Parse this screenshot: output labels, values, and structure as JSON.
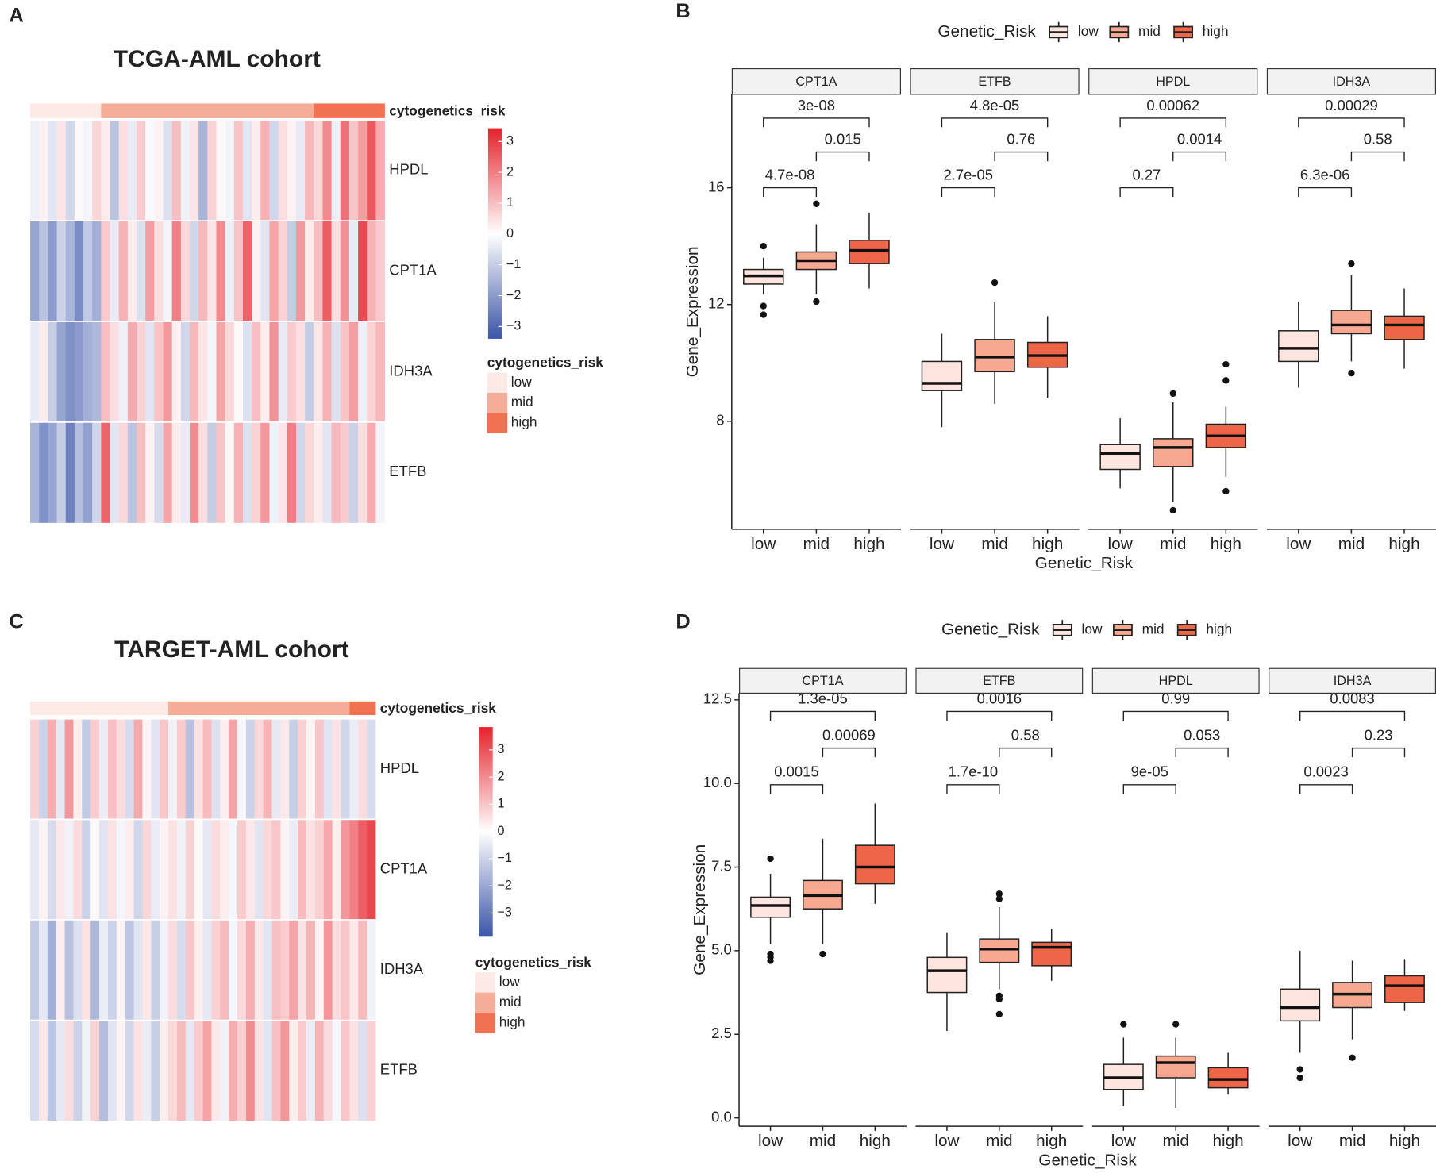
{
  "chart_data": [
    {
      "type": "heatmap",
      "panel": "A",
      "title": "TCGA-AML cohort",
      "rows": [
        "HPDL",
        "CPT1A",
        "IDH3A",
        "ETFB"
      ],
      "values": [
        [
          -0.3,
          0.2,
          -0.5,
          0.4,
          -0.8,
          0.1,
          -0.2,
          0.6,
          0.3,
          -1.2,
          0.5,
          -0.4,
          0.8,
          -0.1,
          0.2,
          -0.6,
          1.0,
          -0.3,
          0.4,
          -1.5,
          0.7,
          0.1,
          -0.2,
          0.9,
          -0.5,
          0.3,
          1.2,
          -0.8,
          0.5,
          0.2,
          -0.4,
          1.1,
          0.6,
          1.8,
          -0.3,
          2.2,
          0.9,
          1.5,
          2.6,
          1.3
        ],
        [
          -1.8,
          -1.2,
          -2.0,
          -0.9,
          -1.5,
          -2.3,
          -1.1,
          -1.6,
          0.8,
          -0.4,
          1.2,
          0.3,
          -0.6,
          1.5,
          0.5,
          -0.2,
          2.0,
          0.6,
          -0.8,
          1.1,
          0.4,
          1.8,
          -0.3,
          0.9,
          2.4,
          0.2,
          -0.5,
          1.4,
          0.7,
          -1.0,
          1.6,
          0.3,
          1.0,
          2.5,
          0.5,
          1.7,
          -0.4,
          2.8,
          1.2,
          0.8
        ],
        [
          -0.4,
          0.3,
          -1.0,
          -1.8,
          -2.2,
          -2.0,
          -1.6,
          -1.4,
          1.0,
          0.5,
          -0.3,
          1.3,
          0.7,
          -0.5,
          0.9,
          1.6,
          0.2,
          -0.8,
          1.1,
          0.4,
          -0.2,
          1.4,
          0.6,
          0.1,
          -0.6,
          1.0,
          0.3,
          1.7,
          -0.4,
          0.8,
          0.5,
          -1.0,
          0.4,
          1.2,
          -0.6,
          0.9,
          1.5,
          -0.3,
          0.7,
          1.1
        ],
        [
          -1.5,
          -2.2,
          -1.8,
          -1.0,
          -2.5,
          -1.3,
          -1.9,
          -0.8,
          2.4,
          -0.5,
          0.6,
          -1.2,
          1.0,
          0.2,
          -0.7,
          1.4,
          0.3,
          -0.4,
          1.8,
          0.5,
          -1.0,
          0.9,
          0.1,
          1.2,
          -0.6,
          0.7,
          1.6,
          -0.3,
          0.4,
          2.0,
          -0.8,
          0.6,
          0.3,
          -0.5,
          1.1,
          0.8,
          -0.9,
          0.5,
          1.3,
          -0.2
        ]
      ],
      "annotation": {
        "name": "cytogenetics_risk",
        "groups": [
          {
            "name": "low",
            "color": "#fde9e5",
            "count": 8
          },
          {
            "name": "mid",
            "color": "#f6ad98",
            "count": 24
          },
          {
            "name": "high",
            "color": "#f07250",
            "count": 8
          }
        ]
      },
      "colorbar": {
        "lim": [
          -3.4,
          3.43
        ],
        "colors": [
          "#3b55a8",
          "#ffffff",
          "#e5222b"
        ],
        "ticks": [
          3,
          2,
          1,
          0,
          {
            "value": -1,
            "label": "−1"
          },
          {
            "value": -2,
            "label": "−2"
          },
          {
            "value": -3,
            "label": "−3"
          }
        ]
      }
    },
    {
      "type": "boxplot",
      "panel": "B",
      "legend_title": "Genetic_Risk",
      "legend_position": "top",
      "categories": [
        "low",
        "mid",
        "high"
      ],
      "colors": [
        "#fee5df",
        "#f6a990",
        "#ef6548"
      ],
      "x_label": "Genetic_Risk",
      "y_label": "Gene_Expression",
      "ylim": [
        4.3,
        19.2
      ],
      "yticks": [
        8,
        12,
        16
      ],
      "facets": [
        {
          "name": "CPT1A",
          "boxes": [
            {
              "min": 12.35,
              "q1": 12.7,
              "median": 12.98,
              "q3": 13.2,
              "max": 13.6,
              "outliers": [
                14.0,
                11.95,
                11.65
              ]
            },
            {
              "min": 12.35,
              "q1": 13.2,
              "median": 13.5,
              "q3": 13.8,
              "max": 14.75,
              "outliers": [
                15.45,
                12.1
              ]
            },
            {
              "min": 12.55,
              "q1": 13.4,
              "median": 13.85,
              "q3": 14.2,
              "max": 15.15,
              "outliers": []
            }
          ],
          "pvalues": [
            {
              "label": "3e-08",
              "pair": [
                0,
                2
              ]
            },
            {
              "label": "0.015",
              "pair": [
                1,
                2
              ]
            },
            {
              "label": "4.7e-08",
              "pair": [
                0,
                1
              ]
            }
          ]
        },
        {
          "name": "ETFB",
          "boxes": [
            {
              "min": 7.8,
              "q1": 9.05,
              "median": 9.3,
              "q3": 10.05,
              "max": 11.0,
              "outliers": []
            },
            {
              "min": 8.6,
              "q1": 9.7,
              "median": 10.2,
              "q3": 10.8,
              "max": 12.1,
              "outliers": [
                12.75
              ]
            },
            {
              "min": 8.8,
              "q1": 9.85,
              "median": 10.25,
              "q3": 10.7,
              "max": 11.6,
              "outliers": []
            }
          ],
          "pvalues": [
            {
              "label": "4.8e-05",
              "pair": [
                0,
                2
              ]
            },
            {
              "label": "0.76",
              "pair": [
                1,
                2
              ]
            },
            {
              "label": "2.7e-05",
              "pair": [
                0,
                1
              ]
            }
          ]
        },
        {
          "name": "HPDL",
          "boxes": [
            {
              "min": 5.7,
              "q1": 6.35,
              "median": 6.9,
              "q3": 7.2,
              "max": 8.1,
              "outliers": []
            },
            {
              "min": 5.25,
              "q1": 6.45,
              "median": 7.1,
              "q3": 7.4,
              "max": 8.65,
              "outliers": [
                8.95,
                4.95
              ]
            },
            {
              "min": 6.1,
              "q1": 7.1,
              "median": 7.5,
              "q3": 7.9,
              "max": 8.5,
              "outliers": [
                9.95,
                9.4,
                5.6
              ]
            }
          ],
          "pvalues": [
            {
              "label": "0.00062",
              "pair": [
                0,
                2
              ]
            },
            {
              "label": "0.0014",
              "pair": [
                1,
                2
              ]
            },
            {
              "label": "0.27",
              "pair": [
                0,
                1
              ]
            }
          ]
        },
        {
          "name": "IDH3A",
          "boxes": [
            {
              "min": 9.15,
              "q1": 10.05,
              "median": 10.5,
              "q3": 11.1,
              "max": 12.1,
              "outliers": []
            },
            {
              "min": 10.05,
              "q1": 11.0,
              "median": 11.3,
              "q3": 11.8,
              "max": 13.0,
              "outliers": [
                13.4,
                9.65
              ]
            },
            {
              "min": 9.8,
              "q1": 10.8,
              "median": 11.3,
              "q3": 11.6,
              "max": 12.55,
              "outliers": []
            }
          ],
          "pvalues": [
            {
              "label": "0.00029",
              "pair": [
                0,
                2
              ]
            },
            {
              "label": "0.58",
              "pair": [
                1,
                2
              ]
            },
            {
              "label": "6.3e-06",
              "pair": [
                0,
                1
              ]
            }
          ]
        }
      ]
    },
    {
      "type": "heatmap",
      "panel": "C",
      "title": "TARGET-AML cohort",
      "rows": [
        "HPDL",
        "CPT1A",
        "IDH3A",
        "ETFB"
      ],
      "values": [
        [
          0.8,
          -1.0,
          1.4,
          -0.5,
          1.8,
          0.3,
          -1.2,
          0.9,
          -0.4,
          1.1,
          0.6,
          -0.8,
          1.5,
          0.2,
          -0.6,
          1.0,
          -0.3,
          0.9,
          -1.4,
          0.5,
          1.2,
          -0.7,
          0.3,
          1.6,
          -0.2,
          -1.0,
          0.7,
          1.3,
          -0.5,
          0.4,
          -1.1,
          0.8,
          0.2,
          1.0,
          -0.6,
          0.5,
          -0.9,
          -0.4,
          0.6,
          -0.8
        ],
        [
          -0.5,
          0.2,
          -0.8,
          0.4,
          -0.3,
          0.6,
          -1.0,
          0.1,
          -0.6,
          0.5,
          -0.2,
          0.3,
          -0.9,
          0.7,
          -0.4,
          0.2,
          0.5,
          -0.3,
          0.8,
          0.1,
          -0.5,
          0.6,
          0.3,
          -0.2,
          0.9,
          0.4,
          -0.6,
          0.7,
          1.0,
          0.2,
          -0.4,
          1.2,
          0.5,
          0.8,
          1.5,
          0.3,
          1.8,
          2.2,
          2.8,
          3.2
        ],
        [
          -1.2,
          -0.5,
          -1.8,
          0.3,
          -1.4,
          -0.7,
          0.5,
          -1.6,
          -0.4,
          -1.0,
          0.2,
          -1.3,
          -0.6,
          0.4,
          -1.1,
          -0.3,
          0.6,
          -0.8,
          1.0,
          0.3,
          -0.5,
          0.8,
          1.2,
          -0.2,
          0.7,
          1.4,
          0.4,
          -0.6,
          1.1,
          0.9,
          1.6,
          0.5,
          1.3,
          0.2,
          1.8,
          0.6,
          1.0,
          0.4,
          1.2,
          -0.3
        ],
        [
          -0.8,
          0.4,
          -1.3,
          -0.5,
          0.6,
          -1.0,
          -0.3,
          0.8,
          -1.5,
          -0.6,
          0.2,
          -0.9,
          0.5,
          -0.4,
          -1.1,
          0.3,
          0.7,
          1.2,
          -0.5,
          0.9,
          1.6,
          0.4,
          -0.3,
          1.4,
          0.8,
          2.0,
          0.5,
          -0.6,
          1.1,
          1.8,
          0.3,
          0.9,
          -0.4,
          1.3,
          0.6,
          -0.2,
          1.0,
          0.5,
          -0.7,
          0.8
        ]
      ],
      "annotation": {
        "name": "cytogenetics_risk",
        "groups": [
          {
            "name": "low",
            "color": "#fde9e5",
            "count": 16
          },
          {
            "name": "mid",
            "color": "#f6ad98",
            "count": 21
          },
          {
            "name": "high",
            "color": "#f07250",
            "count": 3
          }
        ]
      },
      "colorbar": {
        "lim": [
          -3.87,
          3.84
        ],
        "colors": [
          "#3b55a8",
          "#ffffff",
          "#e5222b"
        ],
        "ticks": [
          3,
          2,
          1,
          0,
          {
            "value": -1,
            "label": "−1"
          },
          {
            "value": -2,
            "label": "−2"
          },
          {
            "value": -3,
            "label": "−3"
          }
        ]
      }
    },
    {
      "type": "boxplot",
      "panel": "D",
      "legend_title": "Genetic_Risk",
      "legend_position": "top",
      "categories": [
        "low",
        "mid",
        "high"
      ],
      "colors": [
        "#fee5df",
        "#f6a990",
        "#ef6548"
      ],
      "x_label": "Genetic_Risk",
      "y_label": "Gene_Expression",
      "ylim": [
        -0.25,
        12.7
      ],
      "yticks": [
        {
          "value": 0,
          "label": "0.0"
        },
        2.5,
        {
          "value": 5,
          "label": "5.0"
        },
        7.5,
        {
          "value": 10,
          "label": "10.0"
        },
        12.5
      ],
      "facets": [
        {
          "name": "CPT1A",
          "boxes": [
            {
              "min": 5.2,
              "q1": 6.0,
              "median": 6.35,
              "q3": 6.6,
              "max": 7.3,
              "outliers": [
                7.75,
                4.9,
                4.8,
                4.7
              ]
            },
            {
              "min": 5.2,
              "q1": 6.25,
              "median": 6.65,
              "q3": 7.1,
              "max": 8.35,
              "outliers": [
                4.9
              ]
            },
            {
              "min": 6.4,
              "q1": 7.0,
              "median": 7.5,
              "q3": 8.15,
              "max": 9.4,
              "outliers": []
            }
          ],
          "pvalues": [
            {
              "label": "1.3e-05",
              "pair": [
                0,
                2
              ]
            },
            {
              "label": "0.00069",
              "pair": [
                1,
                2
              ]
            },
            {
              "label": "0.0015",
              "pair": [
                0,
                1
              ]
            }
          ]
        },
        {
          "name": "ETFB",
          "boxes": [
            {
              "min": 2.6,
              "q1": 3.75,
              "median": 4.4,
              "q3": 4.8,
              "max": 5.55,
              "outliers": []
            },
            {
              "min": 3.85,
              "q1": 4.65,
              "median": 5.05,
              "q3": 5.35,
              "max": 6.3,
              "outliers": [
                6.7,
                6.55,
                3.65,
                3.55,
                3.1
              ]
            },
            {
              "min": 4.1,
              "q1": 4.55,
              "median": 5.1,
              "q3": 5.25,
              "max": 5.65,
              "outliers": []
            }
          ],
          "pvalues": [
            {
              "label": "0.0016",
              "pair": [
                0,
                2
              ]
            },
            {
              "label": "0.58",
              "pair": [
                1,
                2
              ]
            },
            {
              "label": "1.7e-10",
              "pair": [
                0,
                1
              ]
            }
          ]
        },
        {
          "name": "HPDL",
          "boxes": [
            {
              "min": 0.35,
              "q1": 0.85,
              "median": 1.2,
              "q3": 1.6,
              "max": 2.4,
              "outliers": [
                2.8
              ]
            },
            {
              "min": 0.3,
              "q1": 1.2,
              "median": 1.65,
              "q3": 1.85,
              "max": 2.4,
              "outliers": [
                2.8
              ]
            },
            {
              "min": 0.7,
              "q1": 0.9,
              "median": 1.15,
              "q3": 1.5,
              "max": 1.95,
              "outliers": []
            }
          ],
          "pvalues": [
            {
              "label": "0.99",
              "pair": [
                0,
                2
              ]
            },
            {
              "label": "0.053",
              "pair": [
                1,
                2
              ]
            },
            {
              "label": "9e-05",
              "pair": [
                0,
                1
              ]
            }
          ]
        },
        {
          "name": "IDH3A",
          "boxes": [
            {
              "min": 1.95,
              "q1": 2.9,
              "median": 3.3,
              "q3": 3.85,
              "max": 5.0,
              "outliers": [
                1.45,
                1.2
              ]
            },
            {
              "min": 2.35,
              "q1": 3.3,
              "median": 3.7,
              "q3": 4.05,
              "max": 4.7,
              "outliers": [
                1.8
              ]
            },
            {
              "min": 3.2,
              "q1": 3.45,
              "median": 3.95,
              "q3": 4.25,
              "max": 4.75,
              "outliers": []
            }
          ],
          "pvalues": [
            {
              "label": "0.0083",
              "pair": [
                0,
                2
              ]
            },
            {
              "label": "0.23",
              "pair": [
                1,
                2
              ]
            },
            {
              "label": "0.0023",
              "pair": [
                0,
                1
              ]
            }
          ]
        }
      ]
    }
  ]
}
